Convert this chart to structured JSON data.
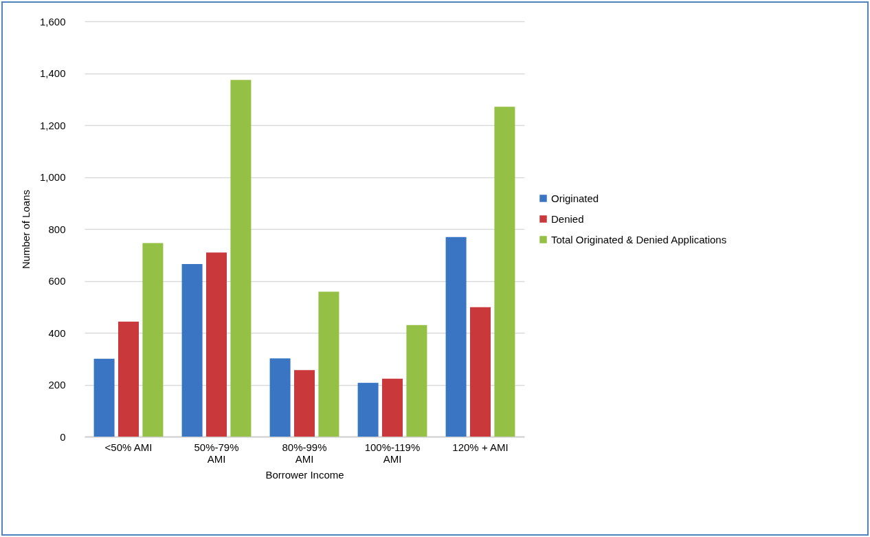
{
  "chart_data": {
    "type": "bar",
    "xlabel": "Borrower Income",
    "ylabel": "Number of Loans",
    "categories": [
      "<50% AMI",
      "50%-79% AMI",
      "80%-99% AMI",
      "100%-119% AMI",
      "120% + AMI"
    ],
    "series": [
      {
        "name": "Originated",
        "color": "#3a75c4",
        "values": [
          300,
          665,
          301,
          207,
          769
        ]
      },
      {
        "name": "Denied",
        "color": "#c9393b",
        "values": [
          443,
          709,
          256,
          223,
          499
        ]
      },
      {
        "name": "Total Originated & Denied Applications",
        "color": "#93c045",
        "values": [
          746,
          1374,
          558,
          430,
          1271
        ]
      }
    ],
    "ylim": [
      0,
      1600
    ],
    "yticks": [
      0,
      200,
      400,
      600,
      800,
      {
        "value": 1000,
        "label": "1,000"
      },
      {
        "value": 1200,
        "label": "1,200"
      },
      {
        "value": 1400,
        "label": "1,400"
      },
      {
        "value": 1600,
        "label": "1,600"
      }
    ],
    "grid": "y",
    "legend": "right"
  }
}
